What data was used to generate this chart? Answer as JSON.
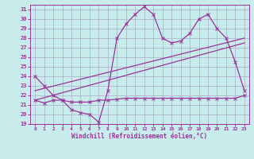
{
  "background_color": "#c8ecec",
  "grid_color": "#aaaacc",
  "line_color": "#993399",
  "xlabel": "Windchill (Refroidissement éolien,°C)",
  "ylim": [
    19,
    31.5
  ],
  "xlim": [
    -0.5,
    23.5
  ],
  "yticks": [
    19,
    20,
    21,
    22,
    23,
    24,
    25,
    26,
    27,
    28,
    29,
    30,
    31
  ],
  "xticks": [
    0,
    1,
    2,
    3,
    4,
    5,
    6,
    7,
    8,
    9,
    10,
    11,
    12,
    13,
    14,
    15,
    16,
    17,
    18,
    19,
    20,
    21,
    22,
    23
  ],
  "line1_x": [
    0,
    1,
    2,
    3,
    4,
    5,
    6,
    7,
    8,
    9,
    10,
    11,
    12,
    13,
    14,
    15,
    16,
    17,
    18,
    19,
    20,
    21,
    22,
    23
  ],
  "line1_y": [
    24,
    23,
    22,
    21.5,
    20.5,
    20.2,
    20.0,
    19.2,
    22.5,
    28.0,
    29.5,
    30.5,
    31.3,
    30.5,
    28.0,
    27.5,
    27.7,
    28.5,
    30.0,
    30.5,
    29.0,
    28.0,
    25.5,
    22.5
  ],
  "line2_x": [
    0,
    1,
    2,
    3,
    4,
    5,
    6,
    7,
    8,
    9,
    10,
    11,
    12,
    13,
    14,
    15,
    16,
    17,
    18,
    19,
    20,
    21,
    22,
    23
  ],
  "line2_y": [
    21.5,
    21.2,
    21.5,
    21.5,
    21.3,
    21.3,
    21.3,
    21.5,
    21.5,
    21.6,
    21.7,
    21.7,
    21.7,
    21.7,
    21.7,
    21.7,
    21.7,
    21.7,
    21.7,
    21.7,
    21.7,
    21.7,
    21.7,
    22.0
  ],
  "line3_x": [
    0,
    23
  ],
  "line3_y": [
    21.5,
    27.5
  ],
  "line4_x": [
    0,
    23
  ],
  "line4_y": [
    22.5,
    28.0
  ],
  "marker": "x",
  "marker_size": 3,
  "linewidth": 0.9
}
